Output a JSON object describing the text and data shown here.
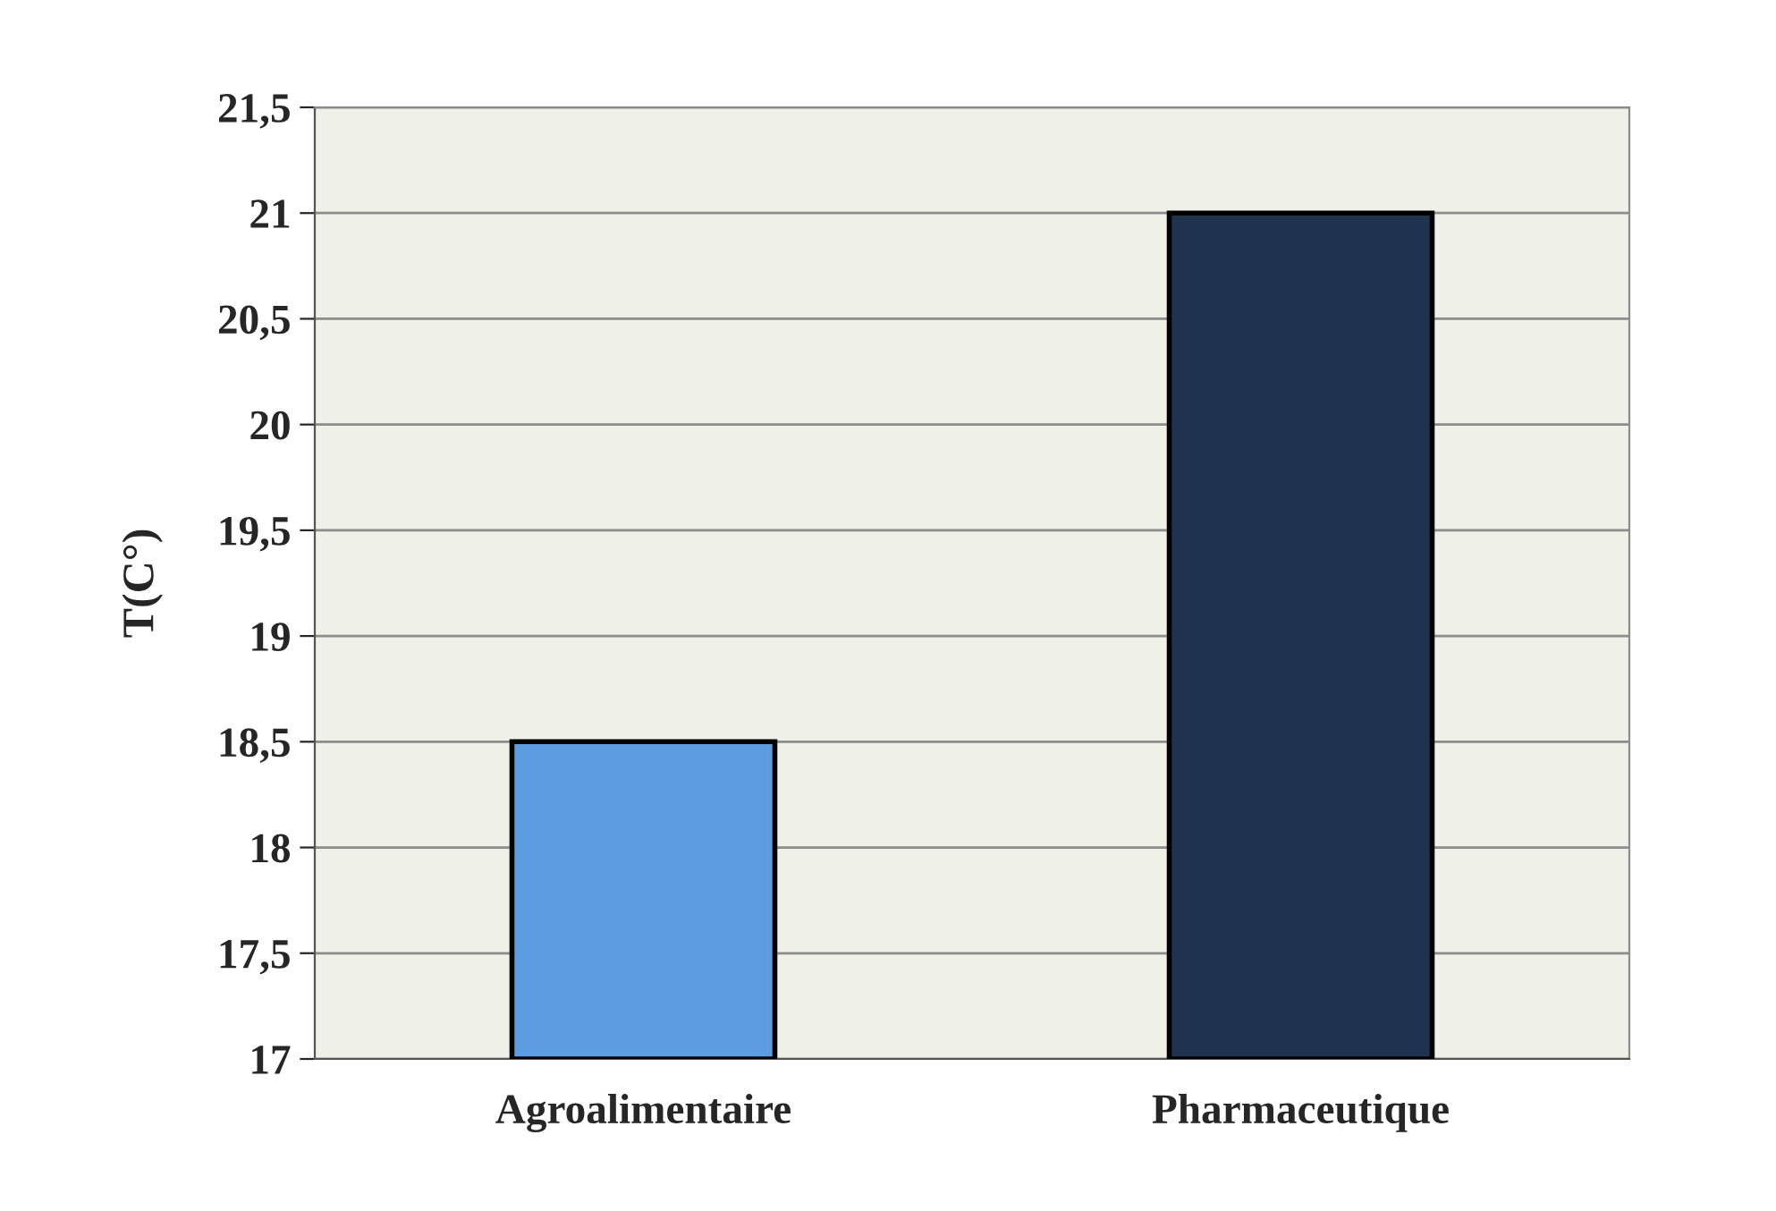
{
  "chart_data": {
    "type": "bar",
    "ylabel": "T(C°)",
    "categories": [
      "Agroalimentaire",
      "Pharmaceutique"
    ],
    "values": [
      18.5,
      21.0
    ],
    "colors": [
      "#5b9be0",
      "#1f3350"
    ],
    "ylim": [
      17,
      21.5
    ],
    "yticks": [
      17,
      {
        "value": 17.5,
        "label": "17,5"
      },
      18,
      {
        "value": 18.5,
        "label": "18,5"
      },
      19,
      {
        "value": 19.5,
        "label": "19,5"
      },
      20,
      {
        "value": 20.5,
        "label": "20,5"
      },
      21,
      {
        "value": 21.5,
        "label": "21,5"
      }
    ],
    "grid": "y"
  }
}
